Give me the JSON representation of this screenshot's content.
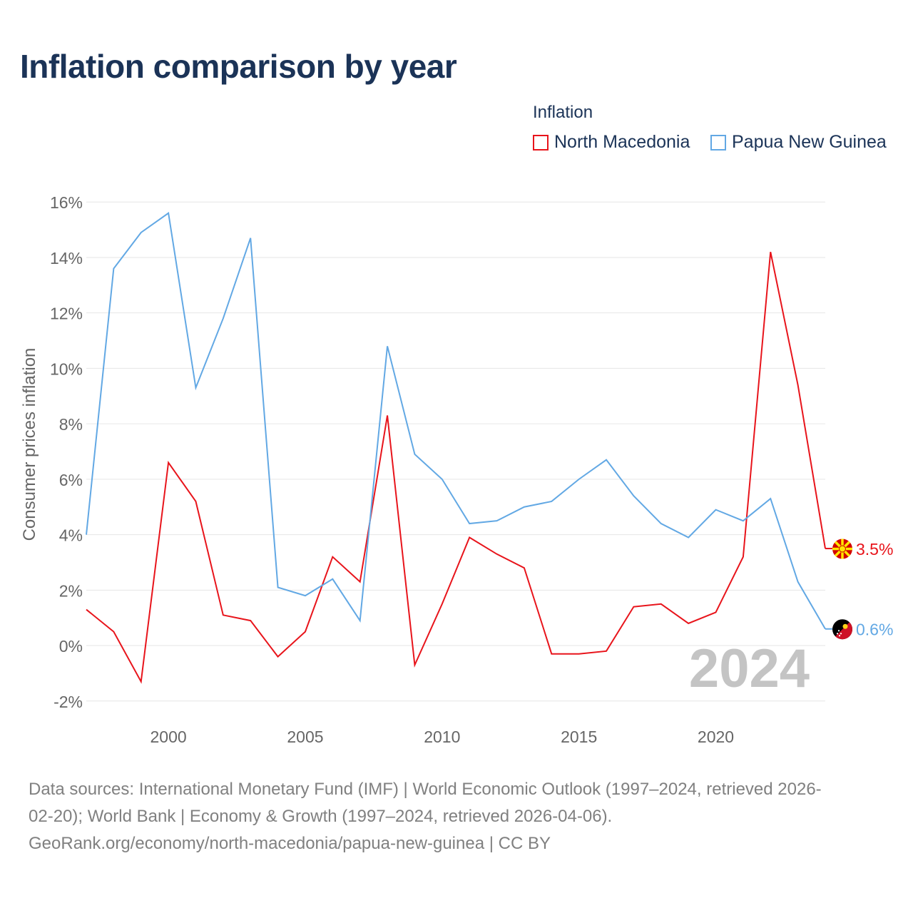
{
  "title": "Inflation comparison by year",
  "legend": {
    "title": "Inflation",
    "items": [
      {
        "label": "North Macedonia",
        "color": "#e8141b"
      },
      {
        "label": "Papua New Guinea",
        "color": "#62a8e4"
      }
    ]
  },
  "chart_data": {
    "type": "line",
    "title": "Inflation comparison by year",
    "ylabel": "Consumer prices inflation",
    "xlabel": "",
    "xlim": [
      1997,
      2024
    ],
    "ylim": [
      -2.7,
      16.7
    ],
    "x_ticks": [
      2000,
      2005,
      2010,
      2015,
      2020
    ],
    "y_ticks": [
      {
        "value": 16,
        "label": "16%"
      },
      {
        "value": 14,
        "label": "14%"
      },
      {
        "value": 12,
        "label": "12%"
      },
      {
        "value": 10,
        "label": "10%"
      },
      {
        "value": 8,
        "label": "8%"
      },
      {
        "value": 6,
        "label": "6%"
      },
      {
        "value": 4,
        "label": "4%"
      },
      {
        "value": 2,
        "label": "2%"
      },
      {
        "value": 0,
        "label": "0%"
      },
      {
        "value": -2,
        "label": "-2%"
      }
    ],
    "x": [
      1997,
      1998,
      1999,
      2000,
      2001,
      2002,
      2003,
      2004,
      2005,
      2006,
      2007,
      2008,
      2009,
      2010,
      2011,
      2012,
      2013,
      2014,
      2015,
      2016,
      2017,
      2018,
      2019,
      2020,
      2021,
      2022,
      2023,
      2024
    ],
    "series": [
      {
        "name": "North Macedonia",
        "color": "#e8141b",
        "end_label": "3.5%",
        "values": [
          1.3,
          0.5,
          -1.3,
          6.6,
          5.2,
          1.1,
          0.9,
          -0.4,
          0.5,
          3.2,
          2.3,
          8.3,
          -0.7,
          1.5,
          3.9,
          3.3,
          2.8,
          -0.3,
          -0.3,
          -0.2,
          1.4,
          1.5,
          0.8,
          1.2,
          3.2,
          14.2,
          9.4,
          3.5
        ]
      },
      {
        "name": "Papua New Guinea",
        "color": "#62a8e4",
        "end_label": "0.6%",
        "values": [
          4.0,
          13.6,
          14.9,
          15.6,
          9.3,
          11.8,
          14.7,
          2.1,
          1.8,
          2.4,
          0.9,
          10.8,
          6.9,
          6.0,
          4.4,
          4.5,
          5.0,
          5.2,
          6.0,
          6.7,
          5.4,
          4.4,
          3.9,
          4.9,
          4.5,
          5.3,
          2.3,
          0.6
        ]
      }
    ],
    "year_watermark": "2024"
  },
  "source": {
    "line1": "Data sources: International Monetary Fund (IMF) | World Economic Outlook (1997–2024, retrieved 2026-",
    "line2": "02-20); World Bank | Economy & Growth (1997–2024, retrieved 2026-04-06).",
    "line3": "GeoRank.org/economy/north-macedonia/papua-new-guinea | CC BY"
  }
}
